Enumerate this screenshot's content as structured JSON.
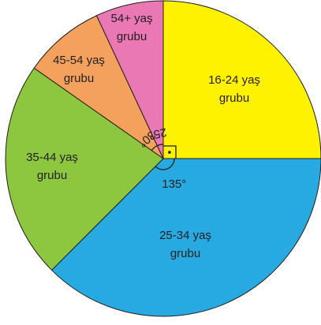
{
  "chart_data": {
    "type": "pie",
    "categories": [
      "16-24 yaş grubu",
      "25-34 yaş grubu",
      "35-44 yaş grubu",
      "45-54 yaş grubu",
      "54+ yaş grubu"
    ],
    "values": [
      90,
      135,
      80,
      30,
      25
    ],
    "value_labels": [
      null,
      "135°",
      null,
      "30°",
      "25°"
    ],
    "colors": [
      "#fff200",
      "#27aae1",
      "#8dc63f",
      "#f4a15d",
      "#ea78b4"
    ]
  }
}
